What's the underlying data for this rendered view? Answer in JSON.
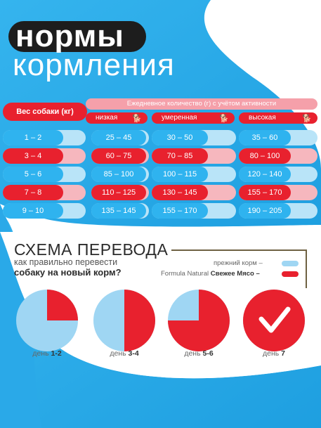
{
  "title": {
    "line1": "нормы",
    "line2": "кормления"
  },
  "table": {
    "weight_header": "Вес собаки (кг)",
    "daily_header": "Ежедневное количество (г) с учётом активности",
    "levels": [
      {
        "label": "низкая",
        "icon": "dog-low-icon",
        "glyph": "🐕"
      },
      {
        "label": "умеренная",
        "icon": "dog-moderate-icon",
        "glyph": "🐕"
      },
      {
        "label": "высокая",
        "icon": "dog-running-icon",
        "glyph": "🐕"
      }
    ],
    "rows": [
      {
        "weight": "1 – 2",
        "low": "25 – 45",
        "moderate": "30 – 50",
        "high": "35 – 60",
        "color": "blue"
      },
      {
        "weight": "3 – 4",
        "low": "60 – 75",
        "moderate": "70 – 85",
        "high": "80 – 100",
        "color": "red"
      },
      {
        "weight": "5 – 6",
        "low": "85 – 100",
        "moderate": "100 – 115",
        "high": "120 – 140",
        "color": "blue"
      },
      {
        "weight": "7 – 8",
        "low": "110 – 125",
        "moderate": "130 – 145",
        "high": "155 – 170",
        "color": "red"
      },
      {
        "weight": "9 – 10",
        "low": "135 – 145",
        "moderate": "155 – 170",
        "high": "190 – 205",
        "color": "blue"
      }
    ]
  },
  "scheme": {
    "title": "СХЕМА ПЕРЕВОДА",
    "subtitle1": "как правильно перевести",
    "subtitle2": "собаку на новый корм?",
    "legend_old": "прежний корм –",
    "legend_new_brand": "Formula Natural",
    "legend_new_name": "Свежее Мясо –",
    "days": [
      {
        "prefix": "день",
        "value": "1-2",
        "new_share": 0.25
      },
      {
        "prefix": "день",
        "value": "3-4",
        "new_share": 0.5
      },
      {
        "prefix": "день",
        "value": "5-6",
        "new_share": 0.75
      },
      {
        "prefix": "день",
        "value": "7",
        "new_share": 1.0,
        "icon": "checkmark-icon"
      }
    ]
  },
  "colors": {
    "blue": "#2fb3ef",
    "red": "#e8212e",
    "light_blue": "#9fd6f3",
    "pink": "#f6b7be",
    "dark": "#1d1d1d"
  }
}
